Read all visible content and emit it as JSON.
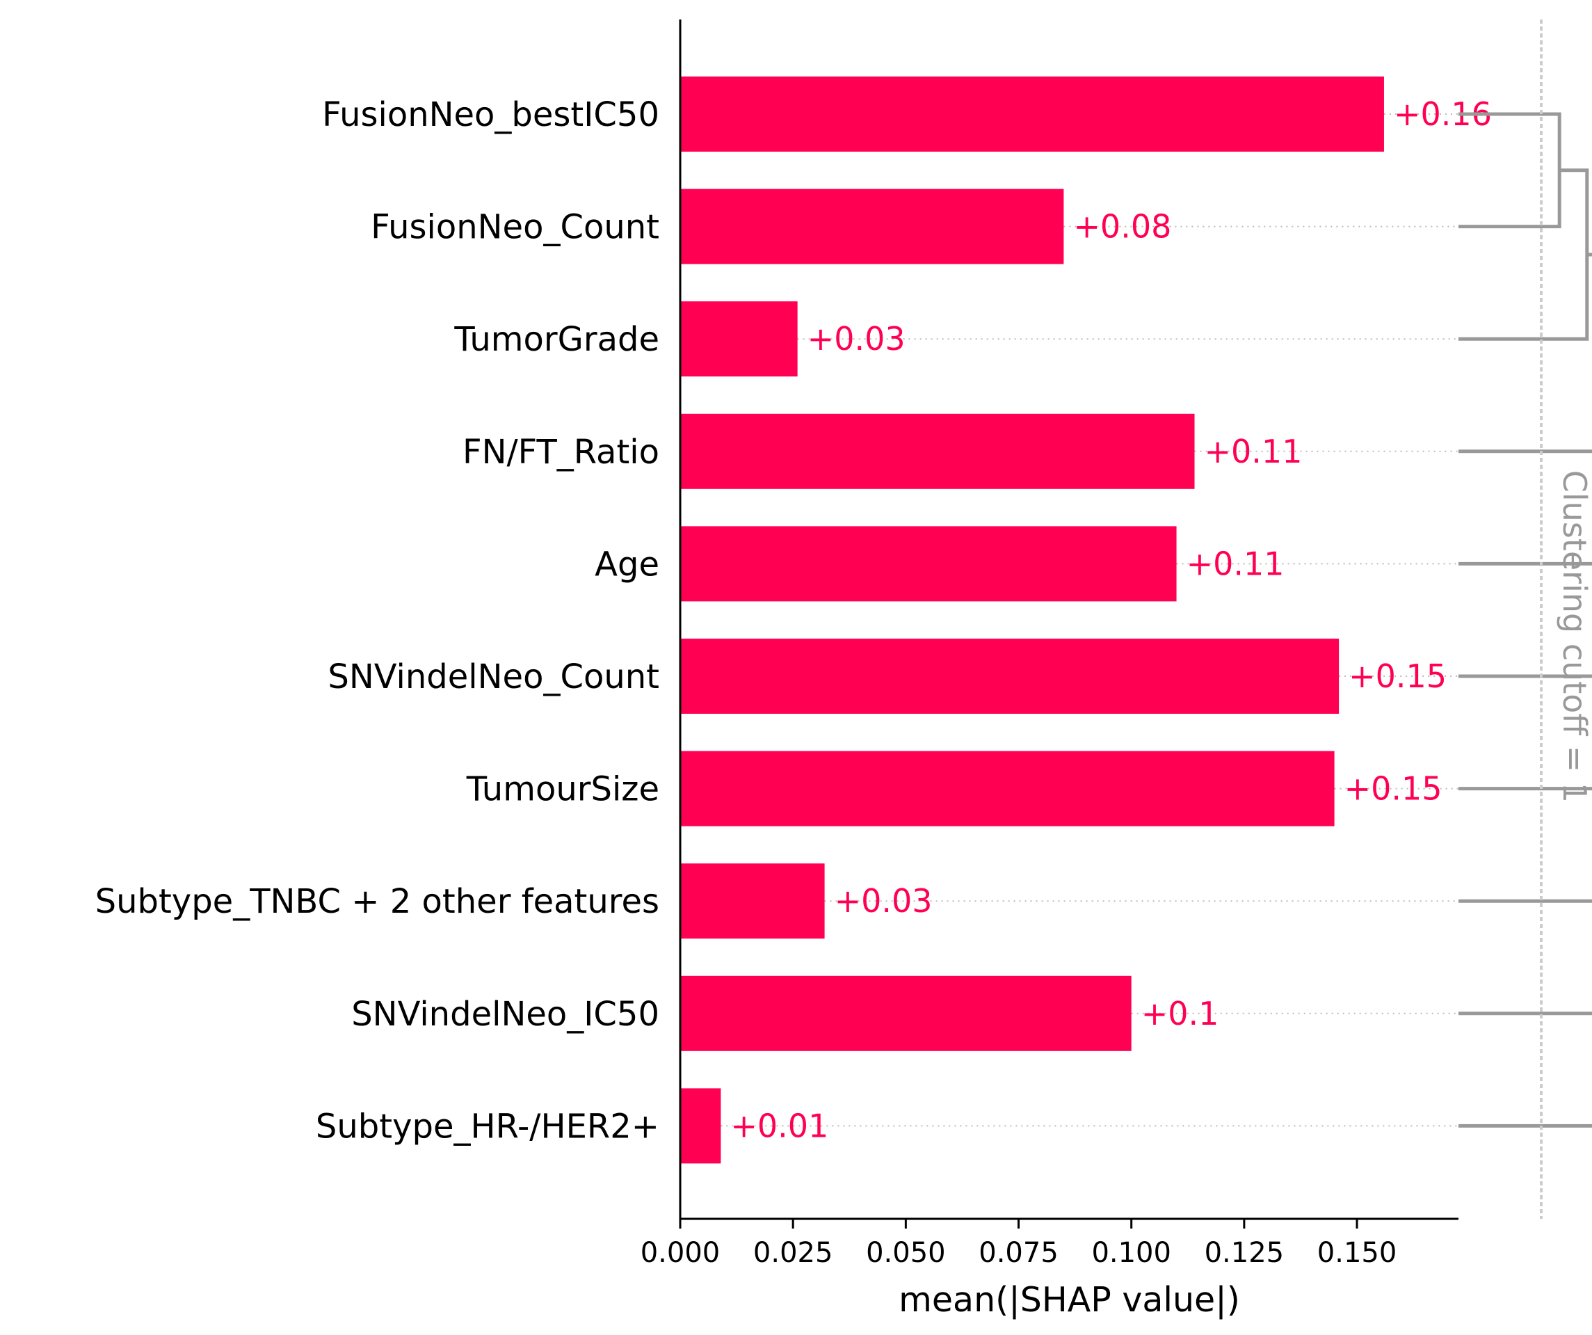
{
  "colors": {
    "bar": "#ff0052",
    "value_text": "#ff0052",
    "axis": "#000000",
    "dendrogram": "#999999",
    "guide": "#bbbbbb",
    "cutoff_line": "#cccccc",
    "cutoff_text": "#999999"
  },
  "chart_data": {
    "type": "bar",
    "orientation": "horizontal",
    "categories": [
      "FusionNeo_bestIC50",
      "FusionNeo_Count",
      "TumorGrade",
      "FN/FT_Ratio",
      "Age",
      "SNVindelNeo_Count",
      "TumourSize",
      "Subtype_TNBC + 2 other features",
      "SNVindelNeo_IC50",
      "Subtype_HR-/HER2+"
    ],
    "values": [
      0.156,
      0.085,
      0.026,
      0.114,
      0.11,
      0.146,
      0.145,
      0.032,
      0.1,
      0.009
    ],
    "value_labels": [
      "+0.16",
      "+0.08",
      "+0.03",
      "+0.11",
      "+0.11",
      "+0.15",
      "+0.15",
      "+0.03",
      "+0.1",
      "+0.01"
    ],
    "xlabel": "mean(|SHAP value|)",
    "xlim": [
      0,
      0.1725
    ],
    "xticks": [
      0.0,
      0.025,
      0.05,
      0.075,
      0.1,
      0.125,
      0.15
    ],
    "xtick_labels": [
      "0.000",
      "0.025",
      "0.050",
      "0.075",
      "0.100",
      "0.125",
      "0.150"
    ],
    "grid": false,
    "clustering_cutoff_label": "Clustering cutoff = 1",
    "dendrogram": [
      {
        "children": [
          0,
          1
        ],
        "height": 0.33
      },
      {
        "children": [
          "m0",
          2
        ],
        "height": 0.42
      },
      {
        "children": [
          "m1",
          3
        ],
        "height": 0.48
      },
      {
        "children": [
          "m2",
          4
        ],
        "height": 0.5
      },
      {
        "children": [
          "m3",
          5
        ],
        "height": 0.51
      },
      {
        "children": [
          "m4",
          6
        ],
        "height": 0.51
      },
      {
        "children": [
          "m5",
          7
        ],
        "height": 0.51
      },
      {
        "children": [
          8,
          9
        ],
        "height": 0.46
      },
      {
        "children": [
          "m6",
          "m7"
        ],
        "height": 0.52
      }
    ]
  }
}
